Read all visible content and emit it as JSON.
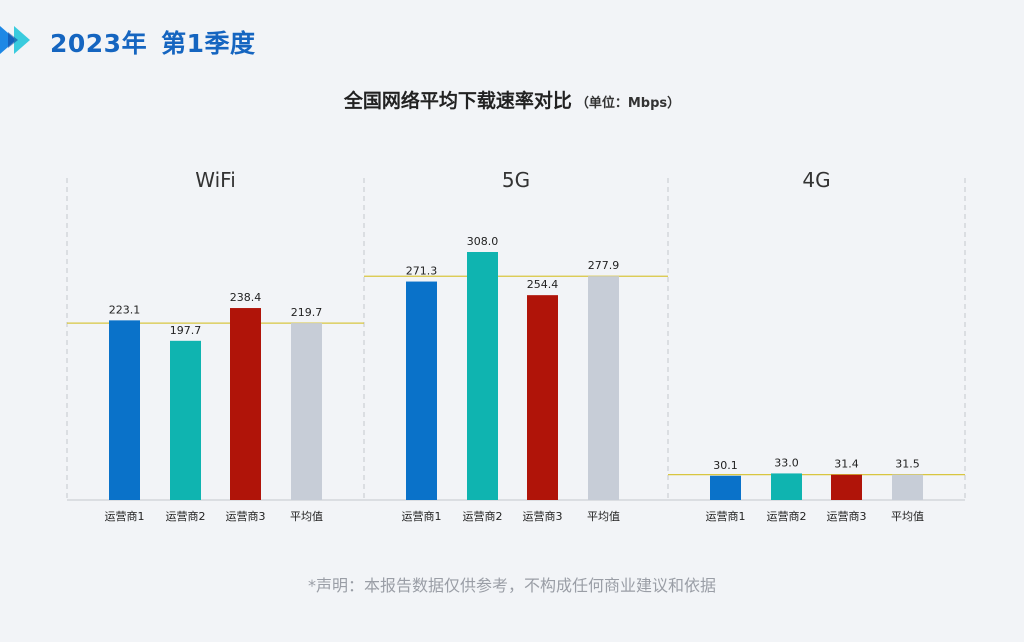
{
  "header": {
    "year_label": "2023年",
    "quarter_label": "第1季度"
  },
  "title": {
    "main": "全国网络平均下载速率对比",
    "unit": "（单位：Mbps）"
  },
  "footer": {
    "disclaimer": "*声明：本报告数据仅供参考，不构成任何商业建议和依据"
  },
  "colors": {
    "brand": "#1565c0",
    "operator1": "#0a72c9",
    "operator2": "#0fb4b0",
    "operator3": "#b01409",
    "average": "#c7cdd7",
    "average_line": "#d8c640",
    "divider": "#c4c7cc"
  },
  "chart_data": {
    "type": "bar",
    "unit": "Mbps",
    "categories": [
      "运营商1",
      "运营商2",
      "运营商3",
      "平均值"
    ],
    "panels": [
      {
        "name": "WiFi",
        "values": [
          223.1,
          197.7,
          238.4,
          219.7
        ],
        "labels": [
          "223.1",
          "197.7",
          "238.4",
          "219.7"
        ]
      },
      {
        "name": "5G",
        "values": [
          271.3,
          308.0,
          254.4,
          277.9
        ],
        "labels": [
          "271.3",
          "308.0",
          "254.4",
          "277.9"
        ]
      },
      {
        "name": "4G",
        "values": [
          30.1,
          33.0,
          31.4,
          31.5
        ],
        "labels": [
          "30.1",
          "33.0",
          "31.4",
          "31.5"
        ]
      }
    ],
    "reference_line": "average",
    "ylim": [
      0,
      308
    ]
  }
}
